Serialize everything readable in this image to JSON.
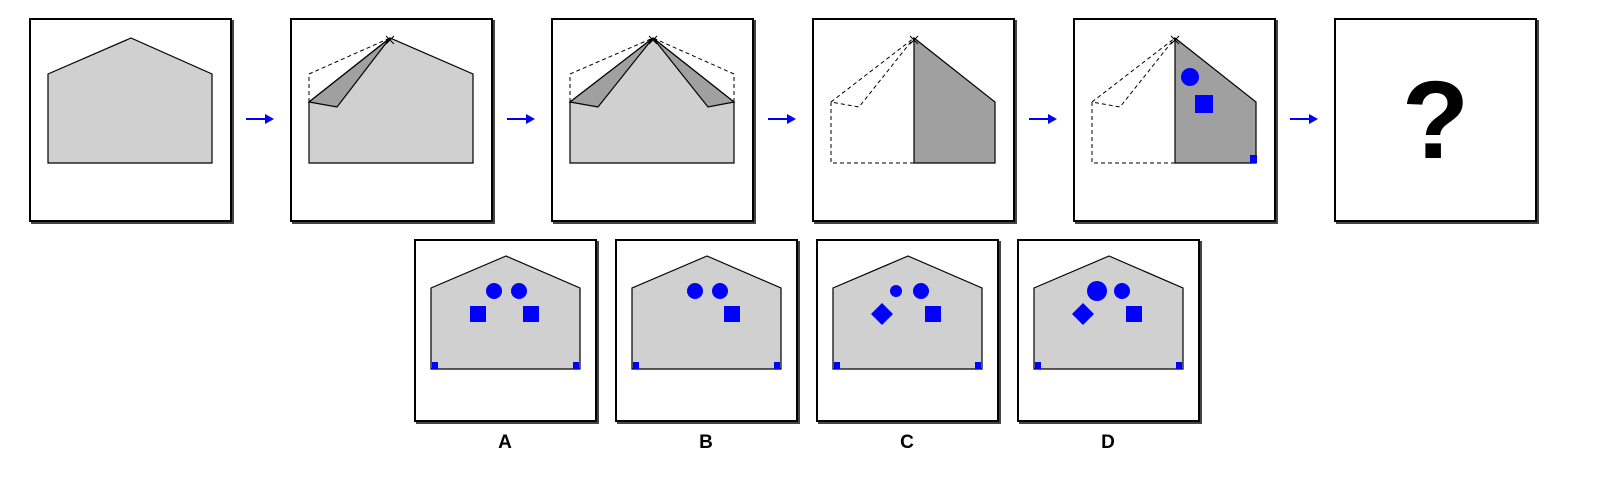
{
  "colors": {
    "fill": "#d0d0d0",
    "fold": "#a0a0a0",
    "shape": "#0000ff",
    "line": "#000000",
    "arrow": "#0000ff"
  },
  "sequence": {
    "arrow_icon": "right-arrow-icon",
    "question_mark": "?"
  },
  "options": [
    {
      "label": "A",
      "shapes": [
        "circle",
        "circle",
        "square",
        "square",
        "small-square-corner-left",
        "small-square-corner-right"
      ]
    },
    {
      "label": "B",
      "shapes": [
        "circle",
        "circle",
        "square",
        "small-square-corner-left",
        "small-square-corner-right"
      ]
    },
    {
      "label": "C",
      "shapes": [
        "small-circle",
        "circle",
        "diamond",
        "square",
        "small-square-corner-left",
        "small-square-corner-right"
      ]
    },
    {
      "label": "D",
      "shapes": [
        "large-circle",
        "circle",
        "diamond",
        "square",
        "small-square-corner-left",
        "small-square-corner-right"
      ]
    }
  ]
}
